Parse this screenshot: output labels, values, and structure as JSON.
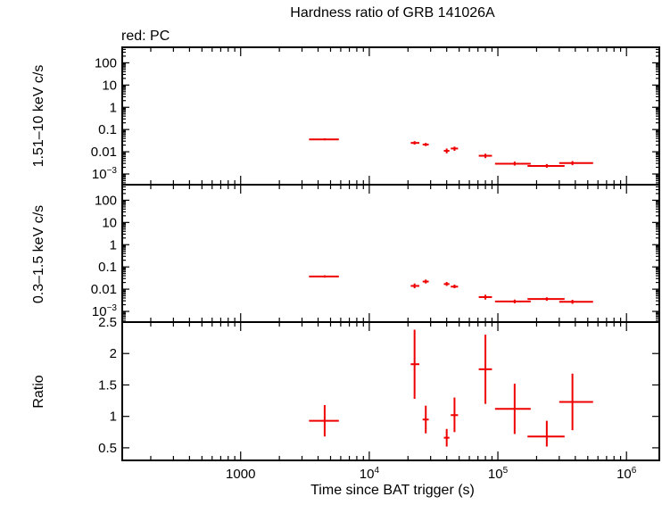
{
  "chart_data": {
    "type": "scatter",
    "title": "Hardness ratio of GRB 141026A",
    "legend": "red: PC",
    "xlabel": "Time since BAT trigger (s)",
    "x_scale": "log",
    "xlim": [
      120,
      1800000
    ],
    "x_ticks": [
      {
        "v": 1000,
        "label": "1000"
      },
      {
        "v": 10000,
        "label": "10^4"
      },
      {
        "v": 100000,
        "label": "10^5"
      },
      {
        "v": 1000000,
        "label": "10^6"
      }
    ],
    "series_color": "#ee0000",
    "panels": [
      {
        "ylabel": "1.51–10 keV c/s",
        "y_scale": "log",
        "ylim": [
          0.00033,
          500
        ],
        "y_ticks": [
          {
            "v": 100,
            "label": "100"
          },
          {
            "v": 10,
            "label": "10"
          },
          {
            "v": 1,
            "label": "1"
          },
          {
            "v": 0.1,
            "label": "0.1"
          },
          {
            "v": 0.01,
            "label": "0.01"
          },
          {
            "v": 0.001,
            "label": "10^-3"
          }
        ],
        "points": [
          {
            "x": 4500,
            "xlo": 3400,
            "xhi": 5800,
            "y": 0.036,
            "ylo": 0.033,
            "yhi": 0.04
          },
          {
            "x": 22500,
            "xlo": 21000,
            "xhi": 24500,
            "y": 0.025,
            "ylo": 0.021,
            "yhi": 0.03
          },
          {
            "x": 27500,
            "xlo": 26000,
            "xhi": 29000,
            "y": 0.021,
            "ylo": 0.018,
            "yhi": 0.025
          },
          {
            "x": 40000,
            "xlo": 38000,
            "xhi": 42000,
            "y": 0.011,
            "ylo": 0.0085,
            "yhi": 0.014
          },
          {
            "x": 46000,
            "xlo": 43000,
            "xhi": 49000,
            "y": 0.014,
            "ylo": 0.011,
            "yhi": 0.017
          },
          {
            "x": 80000,
            "xlo": 71000,
            "xhi": 90000,
            "y": 0.0066,
            "ylo": 0.0052,
            "yhi": 0.0082
          },
          {
            "x": 135000,
            "xlo": 95000,
            "xhi": 180000,
            "y": 0.0029,
            "ylo": 0.0024,
            "yhi": 0.0036
          },
          {
            "x": 240000,
            "xlo": 170000,
            "xhi": 330000,
            "y": 0.0023,
            "ylo": 0.0019,
            "yhi": 0.0028
          },
          {
            "x": 380000,
            "xlo": 300000,
            "xhi": 550000,
            "y": 0.0031,
            "ylo": 0.0025,
            "yhi": 0.0038
          }
        ]
      },
      {
        "ylabel": "0.3–1.5 keV c/s",
        "y_scale": "log",
        "ylim": [
          0.00033,
          500
        ],
        "y_ticks": [
          {
            "v": 100,
            "label": "100"
          },
          {
            "v": 10,
            "label": "10"
          },
          {
            "v": 1,
            "label": "1"
          },
          {
            "v": 0.1,
            "label": "0.1"
          },
          {
            "v": 0.01,
            "label": "0.01"
          },
          {
            "v": 0.001,
            "label": "10^-3"
          }
        ],
        "points": [
          {
            "x": 4500,
            "xlo": 3400,
            "xhi": 5800,
            "y": 0.037,
            "ylo": 0.033,
            "yhi": 0.042
          },
          {
            "x": 22500,
            "xlo": 21000,
            "xhi": 24500,
            "y": 0.014,
            "ylo": 0.011,
            "yhi": 0.018
          },
          {
            "x": 27500,
            "xlo": 26000,
            "xhi": 29000,
            "y": 0.022,
            "ylo": 0.018,
            "yhi": 0.027
          },
          {
            "x": 40000,
            "xlo": 38000,
            "xhi": 42000,
            "y": 0.017,
            "ylo": 0.014,
            "yhi": 0.021
          },
          {
            "x": 46000,
            "xlo": 43000,
            "xhi": 49000,
            "y": 0.013,
            "ylo": 0.011,
            "yhi": 0.016
          },
          {
            "x": 80000,
            "xlo": 71000,
            "xhi": 90000,
            "y": 0.0044,
            "ylo": 0.0034,
            "yhi": 0.0056
          },
          {
            "x": 135000,
            "xlo": 95000,
            "xhi": 180000,
            "y": 0.0028,
            "ylo": 0.0023,
            "yhi": 0.0034
          },
          {
            "x": 240000,
            "xlo": 170000,
            "xhi": 330000,
            "y": 0.0036,
            "ylo": 0.003,
            "yhi": 0.0043
          },
          {
            "x": 380000,
            "xlo": 300000,
            "xhi": 550000,
            "y": 0.0027,
            "ylo": 0.0022,
            "yhi": 0.0033
          }
        ]
      },
      {
        "ylabel": "Ratio",
        "y_scale": "linear",
        "ylim": [
          0.3,
          2.5
        ],
        "y_ticks": [
          {
            "v": 2.5,
            "label": "2.5"
          },
          {
            "v": 2,
            "label": "2"
          },
          {
            "v": 1.5,
            "label": "1.5"
          },
          {
            "v": 1,
            "label": "1"
          },
          {
            "v": 0.5,
            "label": "0.5"
          }
        ],
        "points": [
          {
            "x": 4500,
            "xlo": 3400,
            "xhi": 5800,
            "y": 0.93,
            "ylo": 0.68,
            "yhi": 1.18
          },
          {
            "x": 22500,
            "xlo": 21000,
            "xhi": 24500,
            "y": 1.83,
            "ylo": 1.28,
            "yhi": 2.38
          },
          {
            "x": 27500,
            "xlo": 26000,
            "xhi": 29000,
            "y": 0.95,
            "ylo": 0.73,
            "yhi": 1.17
          },
          {
            "x": 40000,
            "xlo": 38000,
            "xhi": 42000,
            "y": 0.66,
            "ylo": 0.52,
            "yhi": 0.8
          },
          {
            "x": 46000,
            "xlo": 43000,
            "xhi": 49000,
            "y": 1.02,
            "ylo": 0.75,
            "yhi": 1.3
          },
          {
            "x": 80000,
            "xlo": 71000,
            "xhi": 90000,
            "y": 1.75,
            "ylo": 1.2,
            "yhi": 2.3
          },
          {
            "x": 135000,
            "xlo": 95000,
            "xhi": 180000,
            "y": 1.12,
            "ylo": 0.72,
            "yhi": 1.52
          },
          {
            "x": 240000,
            "xlo": 170000,
            "xhi": 330000,
            "y": 0.68,
            "ylo": 0.52,
            "yhi": 0.93
          },
          {
            "x": 380000,
            "xlo": 300000,
            "xhi": 550000,
            "y": 1.23,
            "ylo": 0.78,
            "yhi": 1.68
          }
        ]
      }
    ]
  }
}
